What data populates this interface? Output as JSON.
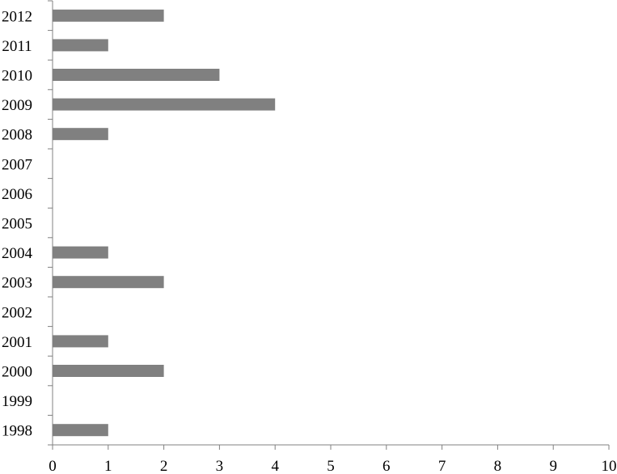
{
  "chart_data": {
    "type": "bar",
    "orientation": "horizontal",
    "categories": [
      "1998",
      "1999",
      "2000",
      "2001",
      "2002",
      "2003",
      "2004",
      "2005",
      "2006",
      "2007",
      "2008",
      "2009",
      "2010",
      "2011",
      "2012"
    ],
    "values": [
      1,
      0,
      2,
      1,
      0,
      2,
      1,
      0,
      0,
      0,
      1,
      4,
      3,
      1,
      2
    ],
    "xlim": [
      0,
      10
    ],
    "xticks": [
      "0",
      "1",
      "2",
      "3",
      "4",
      "5",
      "6",
      "7",
      "8",
      "9",
      "10"
    ],
    "title": "",
    "xlabel": "",
    "ylabel": "",
    "grid": false,
    "legend": "none",
    "colors": {
      "bar": "#808080",
      "axis": "#808080"
    }
  }
}
